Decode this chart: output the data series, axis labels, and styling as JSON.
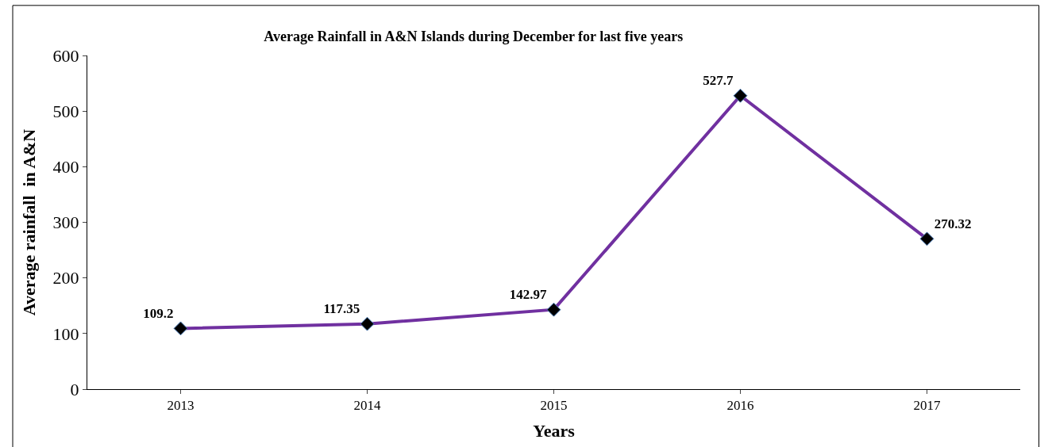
{
  "chart_data": {
    "type": "line",
    "title": "Average Rainfall in A&N Islands during December for last five years",
    "xlabel": "Years",
    "ylabel": "Average rainfall  in A&N",
    "categories": [
      "2013",
      "2014",
      "2015",
      "2016",
      "2017"
    ],
    "series": [
      {
        "color": "#7030a0",
        "values": [
          109.2,
          117.35,
          142.97,
          527.7,
          270.32
        ]
      }
    ],
    "ylim": [
      0,
      600
    ],
    "yticks": [
      0,
      100,
      200,
      300,
      400,
      500,
      600
    ],
    "marker": "diamond",
    "line_style": "solid",
    "data_labels": true
  }
}
